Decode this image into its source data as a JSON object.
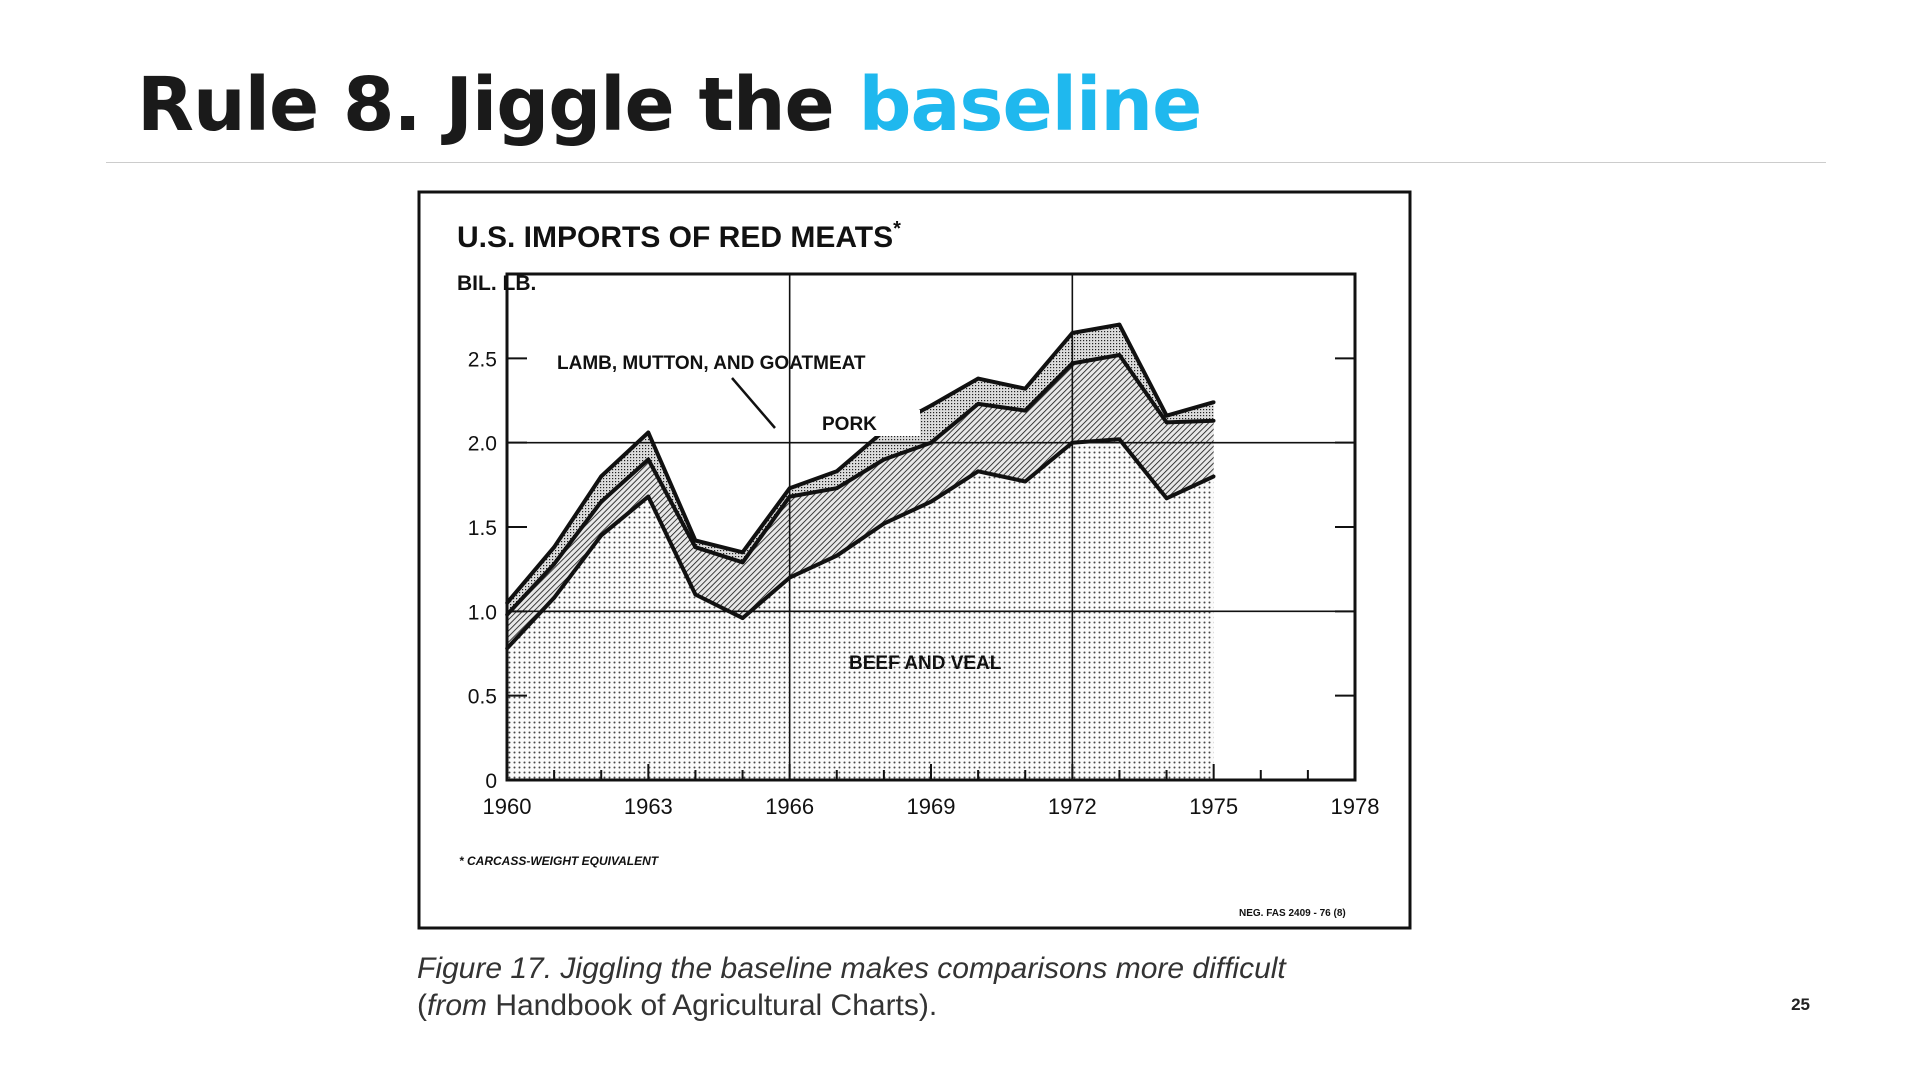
{
  "slide": {
    "title_prefix": "Rule 8. Jiggle the ",
    "title_highlight": "baseline",
    "highlight_color": "#1fb8ee",
    "page_number": "25"
  },
  "caption": {
    "line1": "Figure 17. Jiggling the baseline makes comparisons more difficult",
    "line2_open": "(",
    "line2_from": "from",
    "line2_source": " Handbook of Agricultural Charts",
    "line2_close": ")."
  },
  "chart_data": {
    "type": "area",
    "stacked": true,
    "title": "U.S. IMPORTS OF RED MEATS",
    "title_mark": "*",
    "ylabel": "BIL. LB.",
    "xlabel": "",
    "xlim": [
      1960,
      1978
    ],
    "ylim": [
      0,
      3.0
    ],
    "grid": true,
    "x_ticks": [
      "1960",
      "1963",
      "1966",
      "1969",
      "1972",
      "1975",
      "1978"
    ],
    "y_ticks": [
      "0",
      "0.5",
      "1.0",
      "1.5",
      "2.0",
      "2.5"
    ],
    "footnote": "* CARCASS-WEIGHT EQUIVALENT",
    "reference": "NEG. FAS 2409 - 76 (8)",
    "x": [
      1960,
      1961,
      1962,
      1963,
      1964,
      1965,
      1966,
      1967,
      1968,
      1969,
      1970,
      1971,
      1972,
      1973,
      1974,
      1975
    ],
    "series": [
      {
        "name": "BEEF AND VEAL",
        "texture": "dots",
        "values": [
          0.78,
          1.08,
          1.45,
          1.68,
          1.1,
          0.96,
          1.2,
          1.33,
          1.52,
          1.65,
          1.83,
          1.77,
          2.0,
          2.02,
          1.67,
          1.8
        ]
      },
      {
        "name": "PORK",
        "texture": "hatch",
        "values": [
          0.2,
          0.2,
          0.2,
          0.22,
          0.28,
          0.33,
          0.48,
          0.4,
          0.38,
          0.35,
          0.4,
          0.42,
          0.47,
          0.5,
          0.45,
          0.33
        ]
      },
      {
        "name": "LAMB, MUTTON, AND GOATMEAT",
        "texture": "fine",
        "values": [
          0.07,
          0.1,
          0.15,
          0.16,
          0.04,
          0.06,
          0.05,
          0.1,
          0.17,
          0.22,
          0.15,
          0.13,
          0.18,
          0.18,
          0.04,
          0.11
        ]
      }
    ]
  }
}
